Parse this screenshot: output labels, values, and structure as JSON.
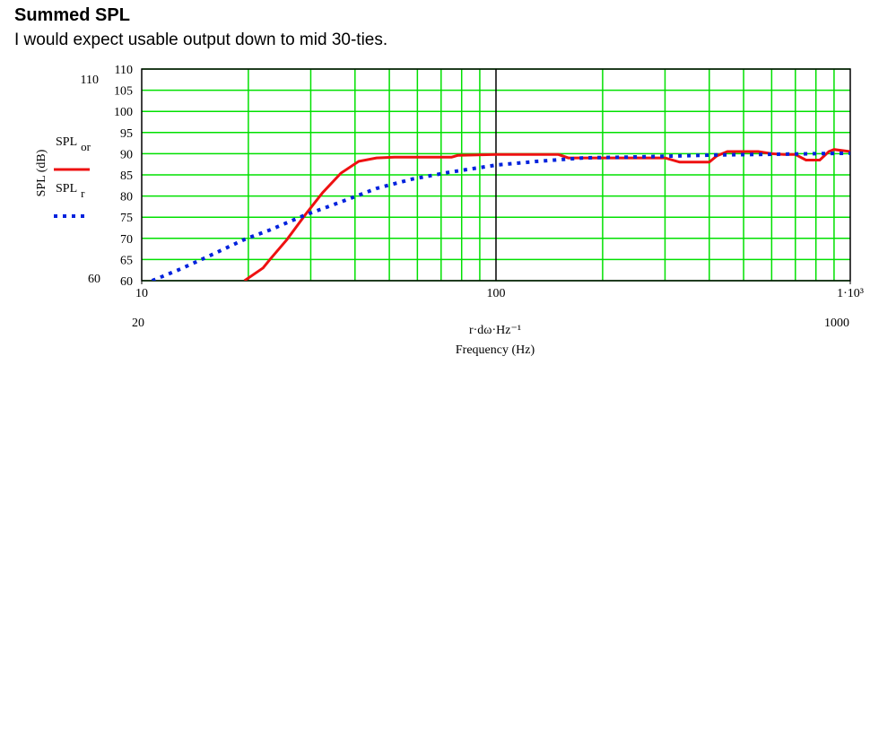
{
  "header": {
    "title": "Summed SPL",
    "subtitle": "I would expect usable output down to mid 30-ties."
  },
  "chart_data": {
    "type": "line",
    "x_label": "r·dω·Hz⁻¹",
    "x_caption": "Frequency (Hz)",
    "y_label": "SPL (dB)",
    "xscale": "log",
    "xlim": [
      10,
      1000
    ],
    "xticks": [
      10,
      100,
      {
        "value": 1000,
        "label": "1·10³"
      }
    ],
    "x_minor_ticks": [
      20,
      30,
      40,
      50,
      60,
      70,
      80,
      90,
      200,
      300,
      400,
      500,
      600,
      700,
      800,
      900
    ],
    "x_limit_labels": [
      20,
      1000
    ],
    "ylim": [
      60,
      110
    ],
    "yticks": [
      60,
      65,
      70,
      75,
      80,
      85,
      90,
      95,
      100,
      105,
      110
    ],
    "grid": true,
    "grid_color": "#00e000",
    "series": [
      {
        "name": "SPL",
        "subscript": "or",
        "color": "#ee1111",
        "style": "solid",
        "x": [
          19.5,
          22,
          23,
          25.7,
          28.9,
          32.4,
          36.5,
          41,
          46,
          51.7,
          75,
          78,
          100,
          150,
          160,
          210,
          300,
          330,
          400,
          420,
          450,
          550,
          600,
          650,
          700,
          750,
          820,
          870,
          900,
          1000
        ],
        "values": [
          60,
          63,
          65,
          69.7,
          75.5,
          80.8,
          85.4,
          88.2,
          89,
          89.2,
          89.2,
          89.6,
          89.8,
          89.8,
          89,
          89,
          89,
          88,
          88,
          89.5,
          90.5,
          90.5,
          90,
          89.8,
          89.8,
          88.5,
          88.5,
          90.5,
          91,
          90.5
        ]
      },
      {
        "name": "SPL",
        "subscript": "r",
        "color": "#0022dd",
        "style": "dotted",
        "x": [
          10.7,
          12.9,
          15.2,
          19.8,
          22.9,
          28.9,
          36.5,
          46,
          58,
          73.5,
          100,
          131,
          176,
          236,
          420,
          1000
        ],
        "values": [
          60,
          62.8,
          65.5,
          70,
          71.9,
          75.5,
          78.6,
          81.8,
          84,
          85.6,
          87.3,
          88.2,
          89,
          89.2,
          89.7,
          90.1
        ]
      }
    ]
  }
}
